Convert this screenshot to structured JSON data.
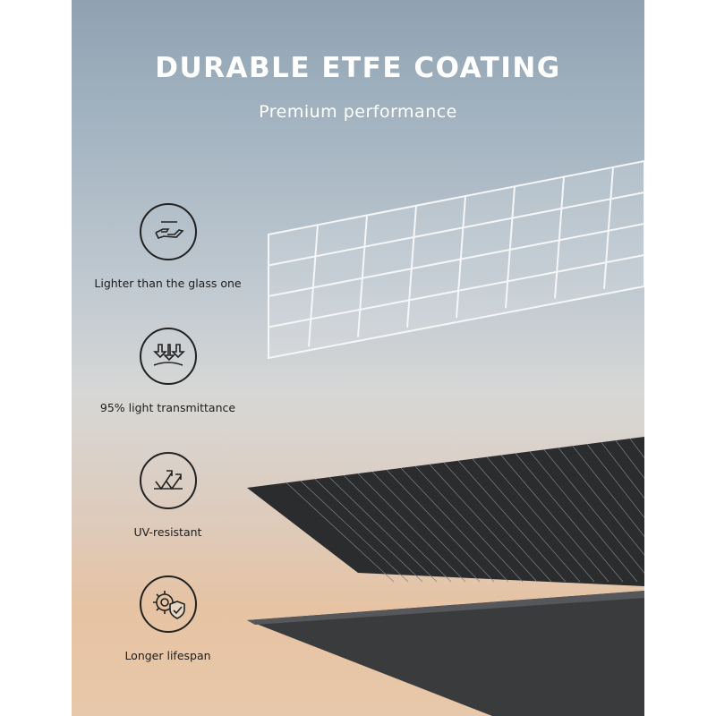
{
  "header": {
    "title": "DURABLE ETFE COATING",
    "subtitle": "Premium performance"
  },
  "features": [
    {
      "icon": "hand-lightweight-icon",
      "label": "Lighter than the glass one"
    },
    {
      "icon": "light-arrows-icon",
      "label": "95% light transmittance"
    },
    {
      "icon": "uv-arrows-icon",
      "label": "UV-resistant"
    },
    {
      "icon": "gear-shield-icon",
      "label": "Longer lifespan"
    }
  ],
  "colors": {
    "text_dark": "#1d1d1d",
    "panel_dark": "#2b2c2e",
    "title": "#ffffff"
  }
}
